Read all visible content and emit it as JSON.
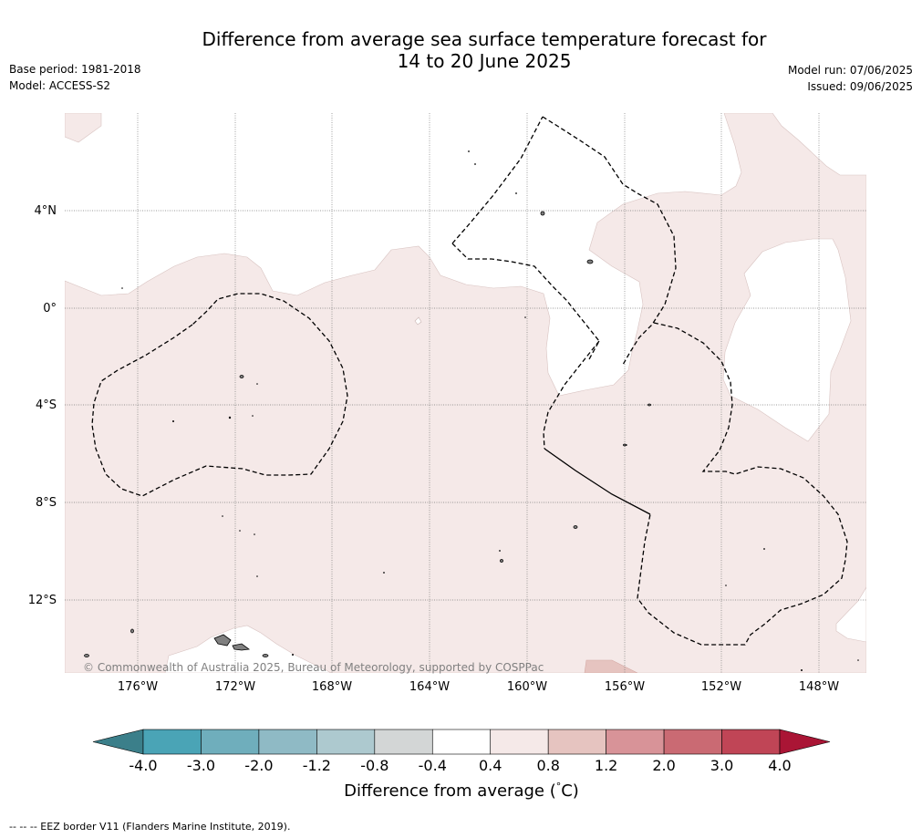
{
  "header": {
    "title_line1": "Difference from average sea surface temperature forecast for",
    "title_line2": "14 to 20 June 2025",
    "base_period": "Base period: 1981-2018",
    "model": "Model: ACCESS-S2",
    "model_run": "Model run: 07/06/2025",
    "issued": "Issued: 09/06/2025"
  },
  "map": {
    "latitude_labels": [
      "4°N",
      "0°",
      "4°S",
      "8°S",
      "12°S"
    ],
    "longitude_labels": [
      "176°W",
      "172°W",
      "168°W",
      "164°W",
      "160°W",
      "156°W",
      "152°W",
      "148°W"
    ],
    "copyright": "© Commonwealth of Australia 2025, Bureau of Meteorology, supported by COSPPac",
    "colors": {
      "anomaly_0p4_0p8": "#f5e9e8",
      "anomaly_0p8_1p2": "#e6c4c0",
      "neutral": "#ffffff",
      "land": "#808080",
      "eez_border": "#000000"
    }
  },
  "colorbar": {
    "ticks": [
      "-4.0",
      "-3.0",
      "-2.0",
      "-1.2",
      "-0.8",
      "-0.4",
      "0.4",
      "0.8",
      "1.2",
      "2.0",
      "3.0",
      "4.0"
    ],
    "colors": [
      "#3b7f8a",
      "#4aa4b6",
      "#6faebc",
      "#8fbac5",
      "#adc9cf",
      "#d3d6d6",
      "#ffffff",
      "#f5e9e8",
      "#e6c4c0",
      "#d89398",
      "#ca6a73",
      "#c04556",
      "#aa1535"
    ],
    "title": "Difference from average (",
    "unit_degree": "°",
    "unit_c": "C)"
  },
  "footer": {
    "eez_legend": "--  --  -- EEZ border V11 (Flanders Marine Institute, 2019)."
  }
}
